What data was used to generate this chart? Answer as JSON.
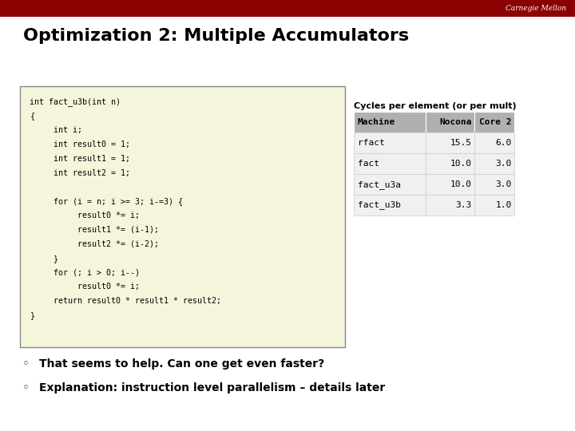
{
  "title": "Optimization 2: Multiple Accumulators",
  "title_fontsize": 16,
  "title_color": "#000000",
  "bg_color": "#ffffff",
  "header_bar_color": "#8B0000",
  "header_text": "Carnegie Mellon",
  "header_text_color": "#ffffff",
  "code_box_bg": "#f5f5dc",
  "code_box_border": "#888888",
  "code_lines": [
    "int fact_u3b(int n)",
    "{",
    "     int i;",
    "     int result0 = 1;",
    "     int result1 = 1;",
    "     int result2 = 1;",
    "",
    "     for (i = n; i >= 3; i-=3) {",
    "          result0 *= i;",
    "          result1 *= (i-1);",
    "          result2 *= (i-2);",
    "     }",
    "     for (; i > 0; i--)",
    "          result0 *= i;",
    "     return result0 * result1 * result2;",
    "}"
  ],
  "code_font_size": 7.2,
  "code_color": "#000000",
  "table_title": "Cycles per element (or per mult)",
  "table_title_bold": true,
  "table_title_fontsize": 8,
  "table_headers": [
    "Machine",
    "Nocona",
    "Core 2"
  ],
  "table_rows": [
    [
      "rfact",
      "15.5",
      "6.0"
    ],
    [
      "fact",
      "10.0",
      "3.0"
    ],
    [
      "fact_u3a",
      "10.0",
      "3.0"
    ],
    [
      "fact_u3b",
      "3.3",
      "1.0"
    ]
  ],
  "table_header_bg": "#b0b0b0",
  "table_header_color": "#000000",
  "table_row_bg": "#f0f0f0",
  "bullet_color": "#8B0000",
  "bullets": [
    "That seems to help. Can one get even faster?",
    "Explanation: instruction level parallelism – details later"
  ],
  "bullet_fontsize": 10,
  "bullet_bold": true
}
